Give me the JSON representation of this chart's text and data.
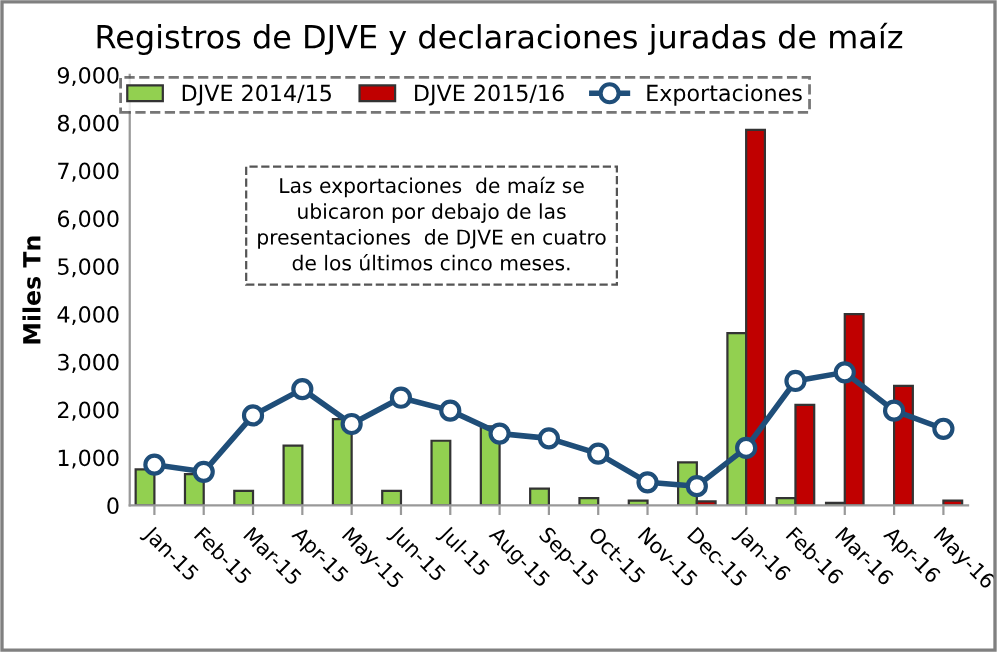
{
  "chart_data": {
    "type": "bar",
    "title": "Registros de DJVE y declaraciones juradas de maíz",
    "ylabel": "Miles Tn",
    "categories": [
      "Jan-15",
      "Feb-15",
      "Mar-15",
      "Apr-15",
      "May-15",
      "Jun-15",
      "Jul-15",
      "Aug-15",
      "Sep-15",
      "Oct-15",
      "Nov-15",
      "Dec-15",
      "Jan-16",
      "Feb-16",
      "Mar-16",
      "Apr-16",
      "May-16"
    ],
    "series": [
      {
        "name": "DJVE 2014/15",
        "color": "#92d050",
        "values": [
          750,
          650,
          300,
          1250,
          1800,
          300,
          1350,
          1650,
          350,
          150,
          100,
          900,
          3600,
          150,
          50,
          null,
          null
        ]
      },
      {
        "name": "DJVE 2015/16",
        "color": "#c00000",
        "values": [
          null,
          null,
          null,
          null,
          null,
          null,
          null,
          null,
          null,
          null,
          null,
          80,
          7850,
          2100,
          4000,
          2500,
          100
        ]
      },
      {
        "name": "Exportaciones",
        "type": "line",
        "color": "#1f4e79",
        "marker": "circle",
        "values": [
          850,
          700,
          1880,
          2430,
          1700,
          2250,
          1980,
          1500,
          1400,
          1080,
          480,
          400,
          1200,
          2600,
          2780,
          1980,
          1600
        ]
      }
    ],
    "ylim": [
      0,
      9000
    ],
    "yticks": [
      {
        "value": 0,
        "label": "0"
      },
      {
        "value": 1000,
        "label": "1,000"
      },
      {
        "value": 2000,
        "label": "2,000"
      },
      {
        "value": 3000,
        "label": "3,000"
      },
      {
        "value": 4000,
        "label": "4,000"
      },
      {
        "value": 5000,
        "label": "5,000"
      },
      {
        "value": 6000,
        "label": "6,000"
      },
      {
        "value": 7000,
        "label": "7,000"
      },
      {
        "value": 8000,
        "label": "8,000"
      },
      {
        "value": 9000,
        "label": "9,000"
      }
    ],
    "grid": false,
    "legend": "top",
    "annotations": [
      "Las exportaciones  de maíz se\nubicaron por debajo de las\npresentaciones  de DJVE en cuatro\nde los últimos cinco meses."
    ]
  }
}
